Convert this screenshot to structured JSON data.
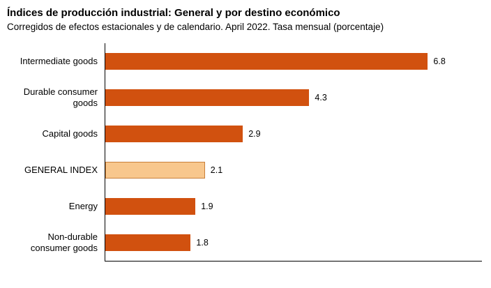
{
  "header": {
    "title": "Índices de producción industrial: General y por destino económico",
    "subtitle": "Corregidos de efectos estacionales y de calendario. April 2022. Tasa mensual (porcentaje)"
  },
  "chart_data": {
    "type": "bar",
    "orientation": "horizontal",
    "title": "Índices de producción industrial: General y por destino económico",
    "subtitle": "Corregidos de efectos estacionales y de calendario. April 2022. Tasa mensual (porcentaje)",
    "categories": [
      "Intermediate goods",
      "Durable consumer goods",
      "Capital goods",
      "GENERAL INDEX",
      "Energy",
      "Non-durable consumer goods"
    ],
    "values": [
      6.8,
      4.3,
      2.9,
      2.1,
      1.9,
      1.8
    ],
    "data_labels": [
      "6.8",
      "4.3",
      "2.9",
      "2.1",
      "1.9",
      "1.8"
    ],
    "xlabel": "",
    "ylabel": "",
    "xlim": [
      0,
      7.9
    ],
    "grid": false,
    "legend": "none",
    "bar_color": "#d1510f",
    "highlight_index": 3,
    "highlight_color": "#f8c78d",
    "highlight_border_color": "#c87f3a",
    "axis_color": "#000000",
    "text_color": "#000000"
  }
}
